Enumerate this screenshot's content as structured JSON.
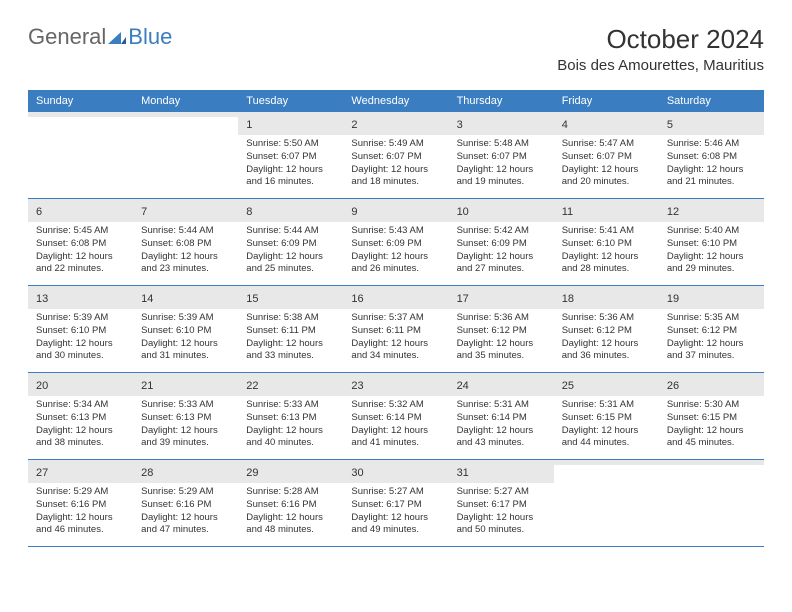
{
  "brand": {
    "part1": "General",
    "part2": "Blue"
  },
  "title": "October 2024",
  "location": "Bois des Amourettes, Mauritius",
  "colors": {
    "header_bg": "#3a7dc0",
    "daynum_bg": "#e8e8e8",
    "week_border": "#3a7dc0",
    "bg": "#ffffff",
    "text": "#333333",
    "logo_gray": "#666666",
    "logo_blue": "#3a7dc0"
  },
  "typography": {
    "title_fontsize": 26,
    "location_fontsize": 15,
    "weekday_fontsize": 11,
    "daynum_fontsize": 11,
    "body_fontsize": 9.5
  },
  "weekdays": [
    "Sunday",
    "Monday",
    "Tuesday",
    "Wednesday",
    "Thursday",
    "Friday",
    "Saturday"
  ],
  "weeks": [
    [
      {
        "n": "",
        "sr": "",
        "ss": "",
        "dl": ""
      },
      {
        "n": "",
        "sr": "",
        "ss": "",
        "dl": ""
      },
      {
        "n": "1",
        "sr": "Sunrise: 5:50 AM",
        "ss": "Sunset: 6:07 PM",
        "dl": "Daylight: 12 hours and 16 minutes."
      },
      {
        "n": "2",
        "sr": "Sunrise: 5:49 AM",
        "ss": "Sunset: 6:07 PM",
        "dl": "Daylight: 12 hours and 18 minutes."
      },
      {
        "n": "3",
        "sr": "Sunrise: 5:48 AM",
        "ss": "Sunset: 6:07 PM",
        "dl": "Daylight: 12 hours and 19 minutes."
      },
      {
        "n": "4",
        "sr": "Sunrise: 5:47 AM",
        "ss": "Sunset: 6:07 PM",
        "dl": "Daylight: 12 hours and 20 minutes."
      },
      {
        "n": "5",
        "sr": "Sunrise: 5:46 AM",
        "ss": "Sunset: 6:08 PM",
        "dl": "Daylight: 12 hours and 21 minutes."
      }
    ],
    [
      {
        "n": "6",
        "sr": "Sunrise: 5:45 AM",
        "ss": "Sunset: 6:08 PM",
        "dl": "Daylight: 12 hours and 22 minutes."
      },
      {
        "n": "7",
        "sr": "Sunrise: 5:44 AM",
        "ss": "Sunset: 6:08 PM",
        "dl": "Daylight: 12 hours and 23 minutes."
      },
      {
        "n": "8",
        "sr": "Sunrise: 5:44 AM",
        "ss": "Sunset: 6:09 PM",
        "dl": "Daylight: 12 hours and 25 minutes."
      },
      {
        "n": "9",
        "sr": "Sunrise: 5:43 AM",
        "ss": "Sunset: 6:09 PM",
        "dl": "Daylight: 12 hours and 26 minutes."
      },
      {
        "n": "10",
        "sr": "Sunrise: 5:42 AM",
        "ss": "Sunset: 6:09 PM",
        "dl": "Daylight: 12 hours and 27 minutes."
      },
      {
        "n": "11",
        "sr": "Sunrise: 5:41 AM",
        "ss": "Sunset: 6:10 PM",
        "dl": "Daylight: 12 hours and 28 minutes."
      },
      {
        "n": "12",
        "sr": "Sunrise: 5:40 AM",
        "ss": "Sunset: 6:10 PM",
        "dl": "Daylight: 12 hours and 29 minutes."
      }
    ],
    [
      {
        "n": "13",
        "sr": "Sunrise: 5:39 AM",
        "ss": "Sunset: 6:10 PM",
        "dl": "Daylight: 12 hours and 30 minutes."
      },
      {
        "n": "14",
        "sr": "Sunrise: 5:39 AM",
        "ss": "Sunset: 6:10 PM",
        "dl": "Daylight: 12 hours and 31 minutes."
      },
      {
        "n": "15",
        "sr": "Sunrise: 5:38 AM",
        "ss": "Sunset: 6:11 PM",
        "dl": "Daylight: 12 hours and 33 minutes."
      },
      {
        "n": "16",
        "sr": "Sunrise: 5:37 AM",
        "ss": "Sunset: 6:11 PM",
        "dl": "Daylight: 12 hours and 34 minutes."
      },
      {
        "n": "17",
        "sr": "Sunrise: 5:36 AM",
        "ss": "Sunset: 6:12 PM",
        "dl": "Daylight: 12 hours and 35 minutes."
      },
      {
        "n": "18",
        "sr": "Sunrise: 5:36 AM",
        "ss": "Sunset: 6:12 PM",
        "dl": "Daylight: 12 hours and 36 minutes."
      },
      {
        "n": "19",
        "sr": "Sunrise: 5:35 AM",
        "ss": "Sunset: 6:12 PM",
        "dl": "Daylight: 12 hours and 37 minutes."
      }
    ],
    [
      {
        "n": "20",
        "sr": "Sunrise: 5:34 AM",
        "ss": "Sunset: 6:13 PM",
        "dl": "Daylight: 12 hours and 38 minutes."
      },
      {
        "n": "21",
        "sr": "Sunrise: 5:33 AM",
        "ss": "Sunset: 6:13 PM",
        "dl": "Daylight: 12 hours and 39 minutes."
      },
      {
        "n": "22",
        "sr": "Sunrise: 5:33 AM",
        "ss": "Sunset: 6:13 PM",
        "dl": "Daylight: 12 hours and 40 minutes."
      },
      {
        "n": "23",
        "sr": "Sunrise: 5:32 AM",
        "ss": "Sunset: 6:14 PM",
        "dl": "Daylight: 12 hours and 41 minutes."
      },
      {
        "n": "24",
        "sr": "Sunrise: 5:31 AM",
        "ss": "Sunset: 6:14 PM",
        "dl": "Daylight: 12 hours and 43 minutes."
      },
      {
        "n": "25",
        "sr": "Sunrise: 5:31 AM",
        "ss": "Sunset: 6:15 PM",
        "dl": "Daylight: 12 hours and 44 minutes."
      },
      {
        "n": "26",
        "sr": "Sunrise: 5:30 AM",
        "ss": "Sunset: 6:15 PM",
        "dl": "Daylight: 12 hours and 45 minutes."
      }
    ],
    [
      {
        "n": "27",
        "sr": "Sunrise: 5:29 AM",
        "ss": "Sunset: 6:16 PM",
        "dl": "Daylight: 12 hours and 46 minutes."
      },
      {
        "n": "28",
        "sr": "Sunrise: 5:29 AM",
        "ss": "Sunset: 6:16 PM",
        "dl": "Daylight: 12 hours and 47 minutes."
      },
      {
        "n": "29",
        "sr": "Sunrise: 5:28 AM",
        "ss": "Sunset: 6:16 PM",
        "dl": "Daylight: 12 hours and 48 minutes."
      },
      {
        "n": "30",
        "sr": "Sunrise: 5:27 AM",
        "ss": "Sunset: 6:17 PM",
        "dl": "Daylight: 12 hours and 49 minutes."
      },
      {
        "n": "31",
        "sr": "Sunrise: 5:27 AM",
        "ss": "Sunset: 6:17 PM",
        "dl": "Daylight: 12 hours and 50 minutes."
      },
      {
        "n": "",
        "sr": "",
        "ss": "",
        "dl": ""
      },
      {
        "n": "",
        "sr": "",
        "ss": "",
        "dl": ""
      }
    ]
  ]
}
